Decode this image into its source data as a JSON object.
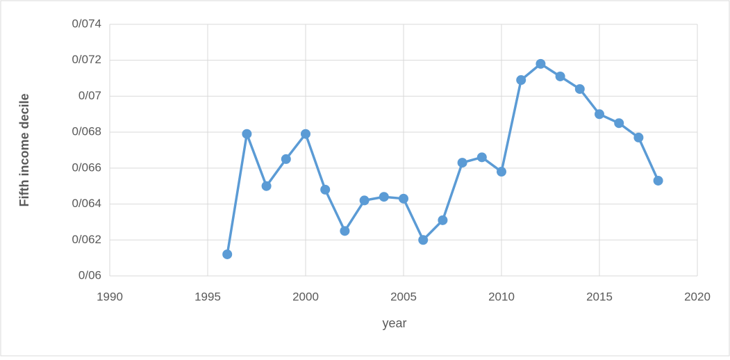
{
  "chart_data": {
    "type": "line",
    "x_label": "year",
    "y_label": "Fifth income decile",
    "x": [
      1996,
      1997,
      1998,
      1999,
      2000,
      2001,
      2002,
      2003,
      2004,
      2005,
      2006,
      2007,
      2008,
      2009,
      2010,
      2011,
      2012,
      2013,
      2014,
      2015,
      2016,
      2017,
      2018
    ],
    "series": [
      {
        "name": "Fifth income decile",
        "color": "#5b9bd5",
        "values": [
          0.0612,
          0.0679,
          0.065,
          0.0665,
          0.0679,
          0.0648,
          0.0625,
          0.0642,
          0.0644,
          0.0643,
          0.062,
          0.0631,
          0.0663,
          0.0666,
          0.0658,
          0.0709,
          0.0718,
          0.0711,
          0.0704,
          0.069,
          0.0685,
          0.0677,
          0.0653
        ]
      }
    ],
    "xlim": [
      1990,
      2020
    ],
    "xticks": [
      1990,
      1995,
      2000,
      2005,
      2010,
      2015,
      2020
    ],
    "ylim": [
      0.06,
      0.074
    ],
    "yticks": [
      {
        "value": 0.06,
        "label": "0/06"
      },
      {
        "value": 0.062,
        "label": "0/062"
      },
      {
        "value": 0.064,
        "label": "0/064"
      },
      {
        "value": 0.066,
        "label": "0/066"
      },
      {
        "value": 0.068,
        "label": "0/068"
      },
      {
        "value": 0.07,
        "label": "0/07"
      },
      {
        "value": 0.072,
        "label": "0/072"
      },
      {
        "value": 0.074,
        "label": "0/074"
      }
    ],
    "grid": true
  }
}
